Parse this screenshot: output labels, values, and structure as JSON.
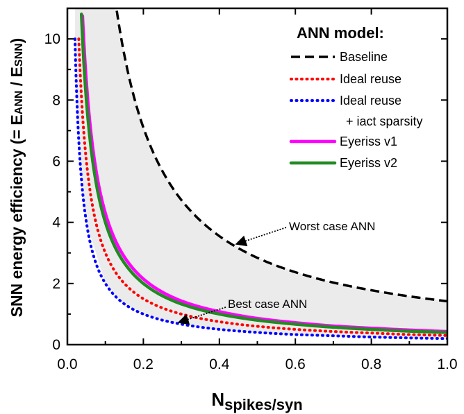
{
  "chart_data": {
    "type": "line",
    "xlabel_main": "N",
    "xlabel_sub": "spikes/syn",
    "ylabel_main": "SNN energy efficiency (= E",
    "ylabel_sub1": "ANN",
    "ylabel_sep": " / E",
    "ylabel_sub2": "SNN",
    "ylabel_end": ")",
    "xlim": [
      0,
      1
    ],
    "ylim": [
      0,
      11
    ],
    "x_ticks": [
      0.0,
      0.2,
      0.4,
      0.6,
      0.8,
      1.0
    ],
    "x_tick_labels": [
      "0.0",
      "0.2",
      "0.4",
      "0.6",
      "0.8",
      "1.0"
    ],
    "y_ticks": [
      0,
      2,
      4,
      6,
      8,
      10
    ],
    "y_tick_labels": [
      "0",
      "2",
      "4",
      "6",
      "8",
      "10"
    ],
    "legend_title": "ANN model:",
    "legend_position": "top-right",
    "shaded_region": {
      "between": [
        "Baseline",
        "Ideal reuse + iact sparsity"
      ],
      "color": "#ebebeb"
    },
    "series": [
      {
        "name": "Baseline",
        "line1": "Baseline",
        "line2": "",
        "style": "dashed",
        "color": "#000000",
        "x": [
          0.13,
          0.15,
          0.2,
          0.25,
          0.3,
          0.4,
          0.5,
          0.6,
          0.7,
          0.8,
          0.9,
          1.0
        ],
        "y": [
          10.92,
          9.47,
          7.1,
          5.68,
          4.73,
          3.55,
          2.84,
          2.37,
          2.03,
          1.78,
          1.58,
          1.42
        ]
      },
      {
        "name": "Ideal reuse",
        "line1": "Ideal reuse",
        "line2": "",
        "style": "dotted",
        "color": "#ff0000",
        "x": [
          0.03,
          0.05,
          0.1,
          0.15,
          0.2,
          0.3,
          0.4,
          0.5,
          0.6,
          0.7,
          0.8,
          0.9,
          1.0
        ],
        "y": [
          10.0,
          6.0,
          3.0,
          2.0,
          1.5,
          1.0,
          0.75,
          0.6,
          0.5,
          0.43,
          0.38,
          0.33,
          0.3
        ]
      },
      {
        "name": "Ideal reuse + iact sparsity",
        "line1": "Ideal reuse",
        "line2": "+ iact sparsity",
        "style": "dotted",
        "color": "#0000ff",
        "x": [
          0.02,
          0.03,
          0.05,
          0.1,
          0.15,
          0.2,
          0.3,
          0.4,
          0.5,
          0.6,
          0.7,
          0.8,
          0.9,
          1.0
        ],
        "y": [
          10.0,
          6.67,
          4.0,
          2.0,
          1.33,
          1.0,
          0.67,
          0.5,
          0.4,
          0.33,
          0.29,
          0.25,
          0.22,
          0.2
        ]
      },
      {
        "name": "Eyeriss v1",
        "line1": "Eyeriss v1",
        "line2": "",
        "style": "solid",
        "color": "#ff00ff",
        "x": [
          0.04,
          0.05,
          0.1,
          0.15,
          0.2,
          0.3,
          0.4,
          0.5,
          0.6,
          0.7,
          0.8,
          0.9,
          1.0
        ],
        "y": [
          10.75,
          8.6,
          4.3,
          2.87,
          2.15,
          1.43,
          1.08,
          0.86,
          0.72,
          0.61,
          0.54,
          0.48,
          0.43
        ]
      },
      {
        "name": "Eyeriss v2",
        "line1": "Eyeriss v2",
        "line2": "",
        "style": "solid",
        "color": "#218a21",
        "x": [
          0.037,
          0.05,
          0.1,
          0.15,
          0.2,
          0.3,
          0.4,
          0.5,
          0.6,
          0.7,
          0.8,
          0.9,
          1.0
        ],
        "y": [
          10.81,
          8.0,
          4.0,
          2.67,
          2.0,
          1.33,
          1.0,
          0.8,
          0.67,
          0.57,
          0.5,
          0.44,
          0.4
        ]
      }
    ],
    "annotations": [
      {
        "text": "Worst case ANN",
        "arrow_to": [
          0.44,
          3.2
        ]
      },
      {
        "text": "Best case ANN",
        "arrow_to": [
          0.28,
          0.72
        ]
      }
    ]
  }
}
